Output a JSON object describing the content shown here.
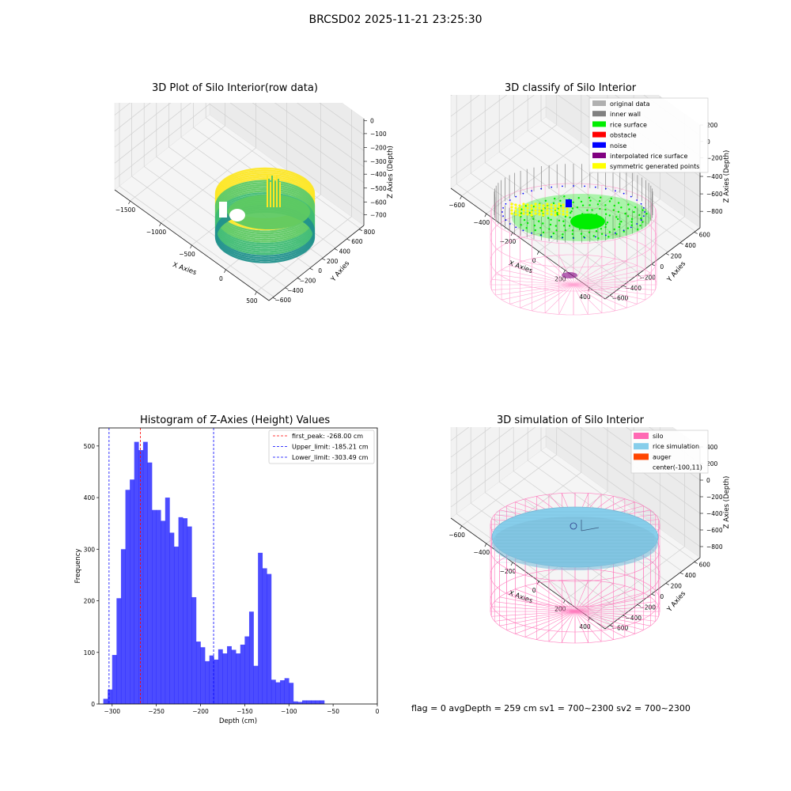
{
  "suptitle": "BRCSD02 2025-11-21 23:25:30",
  "footer": "flag = 0     avgDepth = 259 cm  sv1 = 700~2300  sv2 = 700~2300",
  "chart_data": [
    {
      "type": "scatter3d",
      "title": "3D Plot of Silo Interior(row data)",
      "xlabel": "X Axies",
      "ylabel": "Y Axies",
      "zlabel": "Z Axies (Depth)",
      "x_ticks": [
        "−1500",
        "−1000",
        "−500",
        "0",
        "500"
      ],
      "y_ticks": [
        "800",
        "600",
        "400",
        "200",
        "0",
        "−200",
        "−400",
        "−600"
      ],
      "z_ticks": [
        "0",
        "−100",
        "−200",
        "−300",
        "−400",
        "−500",
        "−600",
        "−700"
      ],
      "colormap": [
        "#440154",
        "#21918c",
        "#5ec962",
        "#fde725"
      ]
    },
    {
      "type": "scatter3d",
      "title": "3D classify of Silo Interior",
      "xlabel": "X Axies",
      "ylabel": "Y Axies",
      "zlabel": "Z Axies (Depth)",
      "x_ticks": [
        "−600",
        "−400",
        "−200",
        "0",
        "200",
        "400"
      ],
      "y_ticks": [
        "600",
        "400",
        "200",
        "0",
        "−200",
        "−400",
        "−600"
      ],
      "z_ticks": [
        "200",
        "0",
        "−200",
        "−400",
        "−600",
        "−800"
      ],
      "z_tick_partial": "00",
      "legend": [
        {
          "label": "original data",
          "color": "#b0b0b0"
        },
        {
          "label": "inner wall",
          "color": "#808080"
        },
        {
          "label": "rice surface",
          "color": "#00ee00"
        },
        {
          "label": "obstacle",
          "color": "#ff0000"
        },
        {
          "label": "noise",
          "color": "#0000ff"
        },
        {
          "label": "interpolated rice surface",
          "color": "#800080"
        },
        {
          "label": "symmetric generated points",
          "color": "#ffff00"
        }
      ]
    },
    {
      "type": "histogram",
      "title": "Histogram of Z-Axies (Height) Values",
      "xlabel": "Depth (cm)",
      "ylabel": "Frequency",
      "xlim": [
        -315,
        0
      ],
      "ylim": [
        0,
        535
      ],
      "x_ticks": [
        -300,
        -250,
        -200,
        -150,
        -100,
        -50,
        0
      ],
      "y_ticks": [
        0,
        100,
        200,
        300,
        400,
        500
      ],
      "bin_start": -310,
      "bin_width": 5,
      "counts": [
        10,
        28,
        95,
        205,
        300,
        415,
        435,
        508,
        492,
        508,
        468,
        376,
        376,
        355,
        400,
        332,
        305,
        362,
        360,
        344,
        207,
        121,
        110,
        83,
        94,
        86,
        106,
        98,
        112,
        105,
        98,
        115,
        131,
        179,
        74,
        293,
        263,
        252,
        47,
        42,
        46,
        50,
        41,
        5,
        4,
        7,
        7,
        7,
        7,
        7
      ],
      "bar_color": "#0000ff",
      "bar_alpha": 0.7,
      "vlines": [
        {
          "label": "first_peak: -268.00 cm",
          "x": -268.0,
          "color": "#ff0000"
        },
        {
          "label": "Upper_limit: -185.21 cm",
          "x": -185.21,
          "color": "#0000ff"
        },
        {
          "label": "Lower_limit: -303.49 cm",
          "x": -303.49,
          "color": "#0000ff"
        }
      ]
    },
    {
      "type": "surface3d",
      "title": "3D simulation of Silo Interior",
      "xlabel": "X Axies",
      "ylabel": "Y Axies",
      "zlabel": "Z Axies (Depth)",
      "x_ticks": [
        "−600",
        "−400",
        "−200",
        "0",
        "200",
        "400"
      ],
      "y_ticks": [
        "600",
        "400",
        "200",
        "0",
        "−200",
        "−400",
        "−600"
      ],
      "z_ticks": [
        "400",
        "200",
        "0",
        "−200",
        "−400",
        "−600",
        "−800"
      ],
      "legend": [
        {
          "label": "silo",
          "color": "#ff69b4"
        },
        {
          "label": "rice simulation",
          "color": "#87ceeb"
        },
        {
          "label": "auger",
          "color": "#ff4500"
        },
        {
          "label": "center(-100,11)",
          "color": ""
        }
      ]
    }
  ]
}
